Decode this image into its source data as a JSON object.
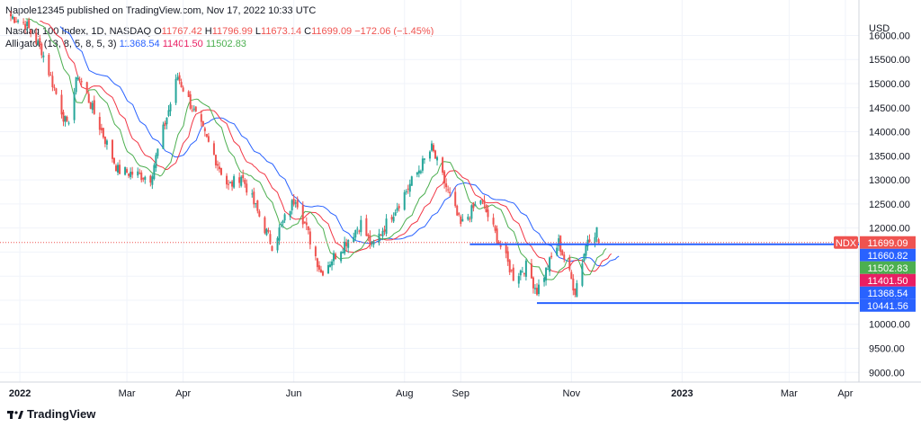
{
  "header": {
    "text": "Napole12345 published on TradingView.com, Nov 17, 2022 10:33 UTC"
  },
  "legend": {
    "symbol": "Nasdaq 100 Index, 1D, NASDAQ",
    "o_label": "O",
    "o_value": "11767.42",
    "h_label": "H",
    "h_value": "11796.99",
    "l_label": "L",
    "l_value": "11673.14",
    "c_label": "C",
    "c_value": "11699.09",
    "change": "−172.06 (−1.45%)",
    "indicator": "Alligator (13, 8, 5, 8, 5, 3)",
    "jaw": "11368.54",
    "teeth": "11401.50",
    "lips": "11502.83"
  },
  "footer": {
    "brand": "TradingView"
  },
  "colors": {
    "up": "#26a69a",
    "down": "#ef5350",
    "jaw": "#2962ff",
    "teeth": "#f23645",
    "lips": "#4caf50",
    "hline": "#2962ff",
    "grid": "#f0f3fa"
  },
  "chart_data": {
    "type": "candlestick",
    "currency": "USD",
    "yticks": [
      "16000.00",
      "15500.00",
      "15000.00",
      "14500.00",
      "14000.00",
      "13500.00",
      "13000.00",
      "12500.00",
      "12000.00",
      "11500.00",
      "11000.00",
      "10500.00",
      "10000.00",
      "9500.00",
      "9000.00"
    ],
    "ytick_values": [
      16000,
      15500,
      15000,
      14500,
      14000,
      13500,
      13000,
      12500,
      12000,
      11500,
      11000,
      10500,
      10000,
      9500,
      9000
    ],
    "xticks": [
      "2022",
      "Mar",
      "Apr",
      "Jun",
      "Aug",
      "Sep",
      "Nov",
      "2023",
      "Mar",
      "Apr"
    ],
    "xtick_dates": [
      "2022-01-01",
      "2022-03-01",
      "2022-04-01",
      "2022-06-01",
      "2022-08-01",
      "2022-09-01",
      "2022-11-01",
      "2023-01-01",
      "2023-03-01",
      "2023-04-01"
    ],
    "x_range": [
      "2021-12-27",
      "2023-04-06"
    ],
    "ylim": [
      8800,
      16550
    ],
    "price_labels": [
      {
        "text": "NDX",
        "value": 11699.09,
        "kind": "symbol"
      },
      {
        "text": "11699.09",
        "value": 11699.09,
        "kind": "last"
      },
      {
        "text": "11660.82",
        "value": 11660.82,
        "kind": "line"
      },
      {
        "text": "11502.83",
        "value": 11502.83,
        "kind": "lips"
      },
      {
        "text": "11401.50",
        "value": 11401.5,
        "kind": "teeth"
      },
      {
        "text": "11368.54",
        "value": 11368.54,
        "kind": "jaw"
      },
      {
        "text": "10441.56",
        "value": 10441.56,
        "kind": "line"
      }
    ],
    "horizontal_lines": [
      {
        "value": 11660.82,
        "from": "2022-09-06",
        "to": "2023-04-06"
      },
      {
        "value": 10441.56,
        "from": "2022-10-13",
        "to": "2023-04-06"
      }
    ],
    "anchors": [
      [
        "2021-12-27",
        16400
      ],
      [
        "2022-01-04",
        16250
      ],
      [
        "2022-01-13",
        15700
      ],
      [
        "2022-01-27",
        14100
      ],
      [
        "2022-02-02",
        15200
      ],
      [
        "2022-02-24",
        13200
      ],
      [
        "2022-03-14",
        13050
      ],
      [
        "2022-03-29",
        15150
      ],
      [
        "2022-04-26",
        12850
      ],
      [
        "2022-05-03",
        13100
      ],
      [
        "2022-05-20",
        11650
      ],
      [
        "2022-06-02",
        12650
      ],
      [
        "2022-06-16",
        11080
      ],
      [
        "2022-07-08",
        12100
      ],
      [
        "2022-07-14",
        11600
      ],
      [
        "2022-08-16",
        13650
      ],
      [
        "2022-09-01",
        12050
      ],
      [
        "2022-09-12",
        12600
      ],
      [
        "2022-09-30",
        10990
      ],
      [
        "2022-10-07",
        11200
      ],
      [
        "2022-10-13",
        10700
      ],
      [
        "2022-10-25",
        11700
      ],
      [
        "2022-11-03",
        10700
      ],
      [
        "2022-11-10",
        11800
      ],
      [
        "2022-11-15",
        11954
      ],
      [
        "2022-11-16",
        11699
      ]
    ],
    "last_candle": {
      "date": "2022-11-16",
      "open": 11767.42,
      "high": 11796.99,
      "low": 11673.14,
      "close": 11699.09
    }
  }
}
